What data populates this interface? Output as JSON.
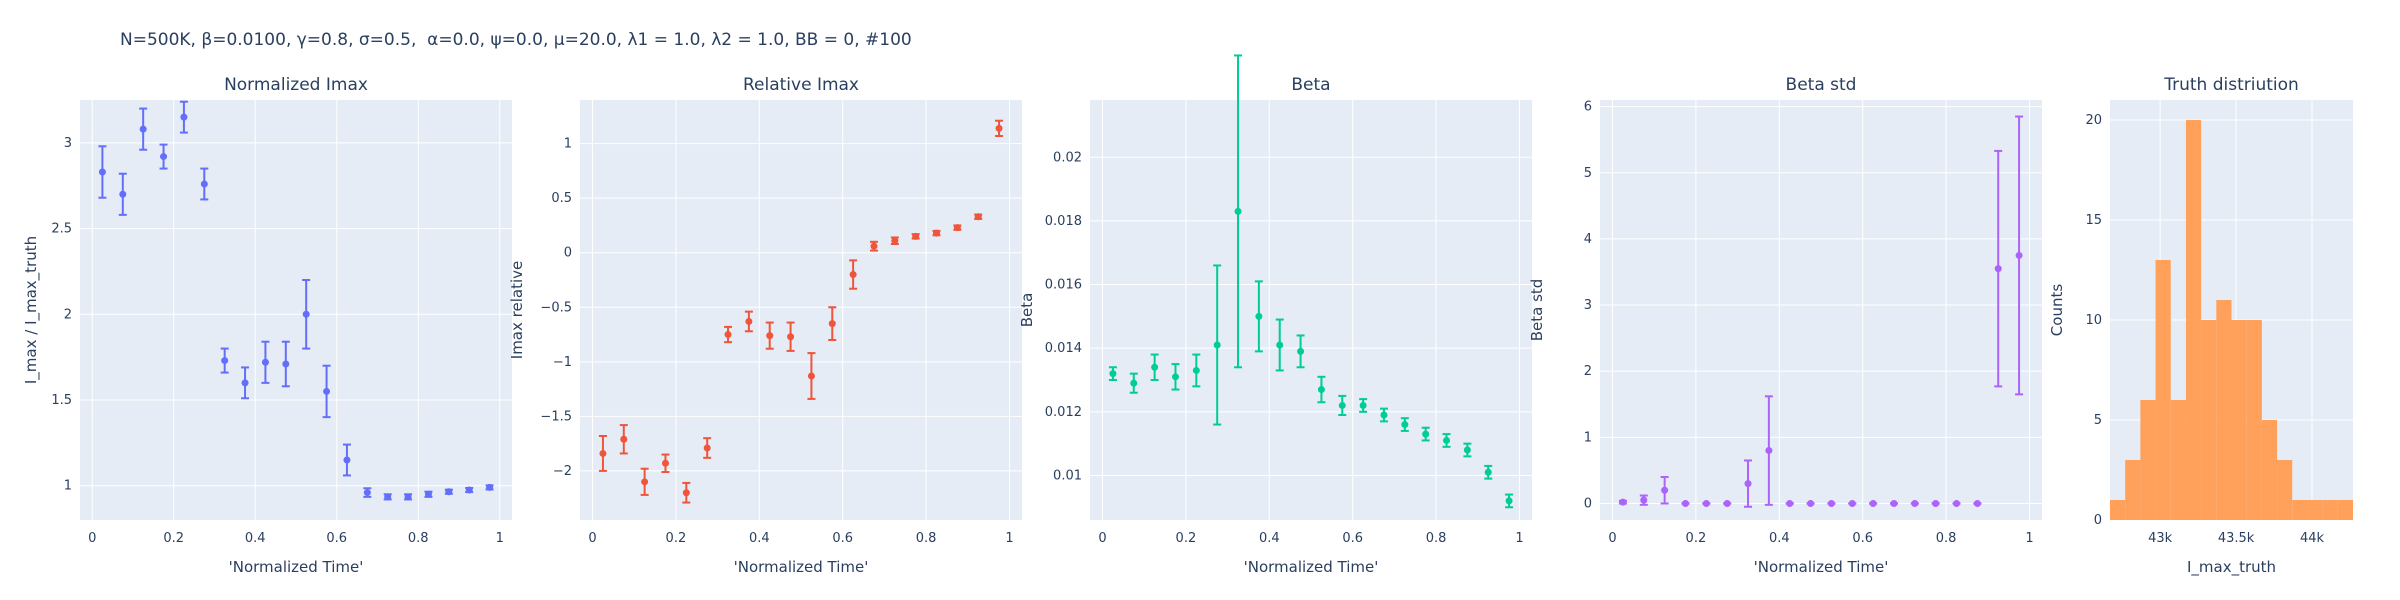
{
  "title": "N=500K, β=0.0100, γ=0.8, σ=0.5,  α=0.0, ψ=0.0, μ=20.0, λ1 = 1.0, λ2 = 1.0, BB = 0, #100",
  "colors": {
    "plot_bg": "#e5ecf6",
    "grid": "#ffffff",
    "normalized_imax": "#636efa",
    "relative_imax": "#ef553b",
    "beta": "#00cc96",
    "beta_std": "#ab63fa",
    "truth": "#ffa15a"
  },
  "chart_data": [
    {
      "type": "scatter",
      "title": "Normalized Imax",
      "xlabel": "'Normalized Time'",
      "ylabel": "I_max / I_max_truth",
      "color_key": "normalized_imax",
      "xlim": [
        -0.03,
        1.03
      ],
      "ylim": [
        0.8,
        3.25
      ],
      "xticks": [
        0,
        0.2,
        0.4,
        0.6,
        0.8,
        1
      ],
      "xtick_labels": [
        "0",
        "0.2",
        "0.4",
        "0.6",
        "0.8",
        "1"
      ],
      "yticks": [
        1,
        1.5,
        2,
        2.5,
        3
      ],
      "ytick_labels": [
        "1",
        "1.5",
        "2",
        "2.5",
        "3"
      ],
      "x": [
        0.025,
        0.075,
        0.125,
        0.175,
        0.225,
        0.275,
        0.325,
        0.375,
        0.425,
        0.475,
        0.525,
        0.575,
        0.625,
        0.675,
        0.725,
        0.775,
        0.825,
        0.875,
        0.925,
        0.975
      ],
      "y": [
        2.83,
        2.7,
        3.08,
        2.92,
        3.15,
        2.76,
        1.73,
        1.6,
        1.72,
        1.71,
        2.0,
        1.55,
        1.15,
        0.96,
        0.935,
        0.935,
        0.95,
        0.965,
        0.975,
        0.99
      ],
      "err": [
        0.15,
        0.12,
        0.12,
        0.07,
        0.09,
        0.09,
        0.07,
        0.09,
        0.12,
        0.13,
        0.2,
        0.15,
        0.09,
        0.025,
        0.015,
        0.015,
        0.015,
        0.012,
        0.012,
        0.012
      ]
    },
    {
      "type": "scatter",
      "title": "Relative Imax",
      "xlabel": "'Normalized Time'",
      "ylabel": "Imax relative",
      "color_key": "relative_imax",
      "xlim": [
        -0.03,
        1.03
      ],
      "ylim": [
        -2.45,
        1.4
      ],
      "xticks": [
        0,
        0.2,
        0.4,
        0.6,
        0.8,
        1
      ],
      "xtick_labels": [
        "0",
        "0.2",
        "0.4",
        "0.6",
        "0.8",
        "1"
      ],
      "yticks": [
        -2,
        -1.5,
        -1,
        -0.5,
        0,
        0.5,
        1
      ],
      "ytick_labels": [
        "−2",
        "−1.5",
        "−1",
        "−0.5",
        "0",
        "0.5",
        "1"
      ],
      "x": [
        0.025,
        0.075,
        0.125,
        0.175,
        0.225,
        0.275,
        0.325,
        0.375,
        0.425,
        0.475,
        0.525,
        0.575,
        0.625,
        0.675,
        0.725,
        0.775,
        0.825,
        0.875,
        0.925,
        0.975
      ],
      "y": [
        -1.84,
        -1.71,
        -2.1,
        -1.93,
        -2.2,
        -1.79,
        -0.75,
        -0.63,
        -0.76,
        -0.77,
        -1.13,
        -0.65,
        -0.2,
        0.06,
        0.11,
        0.15,
        0.18,
        0.23,
        0.33,
        1.14
      ],
      "err": [
        0.16,
        0.13,
        0.12,
        0.08,
        0.09,
        0.09,
        0.07,
        0.09,
        0.12,
        0.13,
        0.21,
        0.15,
        0.13,
        0.04,
        0.03,
        0.02,
        0.02,
        0.02,
        0.02,
        0.07
      ]
    },
    {
      "type": "scatter",
      "title": "Beta",
      "xlabel": "'Normalized Time'",
      "ylabel": "Beta",
      "color_key": "beta",
      "xlim": [
        -0.03,
        1.03
      ],
      "ylim": [
        0.0086,
        0.0218
      ],
      "xticks": [
        0,
        0.2,
        0.4,
        0.6,
        0.8,
        1
      ],
      "xtick_labels": [
        "0",
        "0.2",
        "0.4",
        "0.6",
        "0.8",
        "1"
      ],
      "yticks": [
        0.01,
        0.012,
        0.014,
        0.016,
        0.018,
        0.02
      ],
      "ytick_labels": [
        "0.01",
        "0.012",
        "0.014",
        "0.016",
        "0.018",
        "0.02"
      ],
      "x": [
        0.025,
        0.075,
        0.125,
        0.175,
        0.225,
        0.275,
        0.325,
        0.375,
        0.425,
        0.475,
        0.525,
        0.575,
        0.625,
        0.675,
        0.725,
        0.775,
        0.825,
        0.875,
        0.925,
        0.975
      ],
      "y": [
        0.0132,
        0.0129,
        0.0134,
        0.0131,
        0.0133,
        0.0141,
        0.0183,
        0.015,
        0.0141,
        0.0139,
        0.0127,
        0.0122,
        0.0122,
        0.0119,
        0.0116,
        0.0113,
        0.0111,
        0.0108,
        0.0101,
        0.0092
      ],
      "err": [
        0.0002,
        0.0003,
        0.0004,
        0.0004,
        0.0005,
        0.0025,
        0.0049,
        0.0011,
        0.0008,
        0.0005,
        0.0004,
        0.0003,
        0.0002,
        0.0002,
        0.0002,
        0.0002,
        0.0002,
        0.0002,
        0.0002,
        0.0002
      ]
    },
    {
      "type": "scatter",
      "title": "Beta std",
      "xlabel": "'Normalized Time'",
      "ylabel": "Beta std",
      "color_key": "beta_std",
      "xlim": [
        -0.03,
        1.03
      ],
      "ylim": [
        -0.25,
        6.1
      ],
      "xticks": [
        0,
        0.2,
        0.4,
        0.6,
        0.8,
        1
      ],
      "xtick_labels": [
        "0",
        "0.2",
        "0.4",
        "0.6",
        "0.8",
        "1"
      ],
      "yticks": [
        0,
        1,
        2,
        3,
        4,
        5,
        6
      ],
      "ytick_labels": [
        "0",
        "1",
        "2",
        "3",
        "4",
        "5",
        "6"
      ],
      "x": [
        0.025,
        0.075,
        0.125,
        0.175,
        0.225,
        0.275,
        0.325,
        0.375,
        0.425,
        0.475,
        0.525,
        0.575,
        0.625,
        0.675,
        0.725,
        0.775,
        0.825,
        0.875,
        0.925,
        0.975
      ],
      "y": [
        0.02,
        0.05,
        0.2,
        0.0,
        0.0,
        0.0,
        0.3,
        0.8,
        0.0,
        0.0,
        0.0,
        0.0,
        0.0,
        0.0,
        0.0,
        0.0,
        0.0,
        0.0,
        3.55,
        3.75
      ],
      "err": [
        0.02,
        0.07,
        0.2,
        0.0,
        0.0,
        0.0,
        0.35,
        0.82,
        0.0,
        0.0,
        0.0,
        0.0,
        0.0,
        0.0,
        0.0,
        0.0,
        0.0,
        0.0,
        1.78,
        2.1
      ]
    },
    {
      "type": "bar",
      "title": "Truth distriution",
      "xlabel": "I_max_truth",
      "ylabel": "Counts",
      "color_key": "truth",
      "xlim": [
        42670,
        44270
      ],
      "ylim": [
        0,
        21
      ],
      "xticks": [
        43000,
        43500,
        44000
      ],
      "xtick_labels": [
        "43k",
        "43.5k",
        "44k"
      ],
      "yticks": [
        0,
        5,
        10,
        15,
        20
      ],
      "ytick_labels": [
        "0",
        "5",
        "10",
        "15",
        "20"
      ],
      "bin_edges": [
        42670,
        42770,
        42870,
        42970,
        43070,
        43170,
        43270,
        43370,
        43470,
        43570,
        43670,
        43770,
        43870,
        43970,
        44070,
        44170,
        44270
      ],
      "values": [
        1,
        3,
        6,
        13,
        6,
        20,
        10,
        11,
        10,
        10,
        5,
        3,
        1,
        1,
        1,
        1
      ]
    }
  ]
}
